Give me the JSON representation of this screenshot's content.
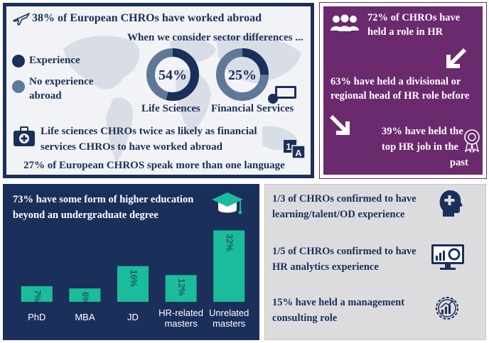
{
  "world": {
    "headline": "38% of European CHROs have worked abroad",
    "sector_intro": "When we consider sector differences ...",
    "legend": [
      {
        "label": "Experience",
        "color": "#1a2f5a"
      },
      {
        "label_line1": "No experience",
        "label_line2": "abroad",
        "color": "#5f7897"
      }
    ],
    "donuts": [
      {
        "name": "Life Sciences",
        "value": 54,
        "value_label": "54%"
      },
      {
        "name": "Financial Services",
        "value": 25,
        "value_label": "25%"
      }
    ],
    "sector_note_line1": "Life sciences CHROs twice as likely as financial",
    "sector_note_line2": "services CHROs to have worked abroad",
    "language_note": "27% of European CHROS speak more than one language",
    "language_icon_letters": [
      "1",
      "A"
    ],
    "icons": [
      "plane-icon",
      "first-aid-kit-icon",
      "monitor-icon",
      "language-icon"
    ]
  },
  "hr_roles": {
    "items": [
      {
        "line1": "72% of CHROs have",
        "line2": "held a role in HR"
      },
      {
        "line1": "63% have held a divisional or",
        "line2": "regional head of HR role before"
      },
      {
        "line1": "39% have held the",
        "line2": "top HR job in the",
        "line3": "past"
      }
    ],
    "icons": [
      "people-icon",
      "arrow-down-left-icon",
      "arrow-down-right-icon",
      "award-ribbon-icon"
    ]
  },
  "education": {
    "title_line1": "73% have some form of higher education",
    "title_line2": "beyond an undergraduate degree",
    "icon": "graduation-cap-icon",
    "bar_color": "#1abc9c"
  },
  "chart_data": {
    "type": "bar",
    "categories": [
      "PhD",
      "MBA",
      "JD",
      "HR-related masters",
      "Unrelated masters"
    ],
    "category_lines": [
      [
        "PhD"
      ],
      [
        "MBA"
      ],
      [
        "JD"
      ],
      [
        "HR-related",
        "masters"
      ],
      [
        "Unrelated",
        "masters"
      ]
    ],
    "values": [
      7,
      6,
      16,
      12,
      32
    ],
    "value_labels": [
      "7%",
      "6%",
      "16%",
      "12%",
      "32%"
    ],
    "ylim": [
      0,
      35
    ],
    "grid": false,
    "title": "",
    "xlabel": "",
    "ylabel": ""
  },
  "experience": {
    "items": [
      {
        "line1": "1/3 of CHROs confirmed to have",
        "line2": "learning/talent/OD experience"
      },
      {
        "line1": "1/5 of CHROs confirmed to have",
        "line2": "HR analytics experience"
      },
      {
        "line1": "15% have held a management",
        "line2": "consulting role"
      }
    ],
    "icons": [
      "head-plus-icon",
      "analytics-monitor-icon",
      "gear-chart-icon"
    ]
  },
  "colors": {
    "navy": "#1a2f5a",
    "purple": "#6b2a6e",
    "teal": "#1abc9c",
    "gray_panel": "#dcdcdf",
    "steel": "#5f7897"
  }
}
